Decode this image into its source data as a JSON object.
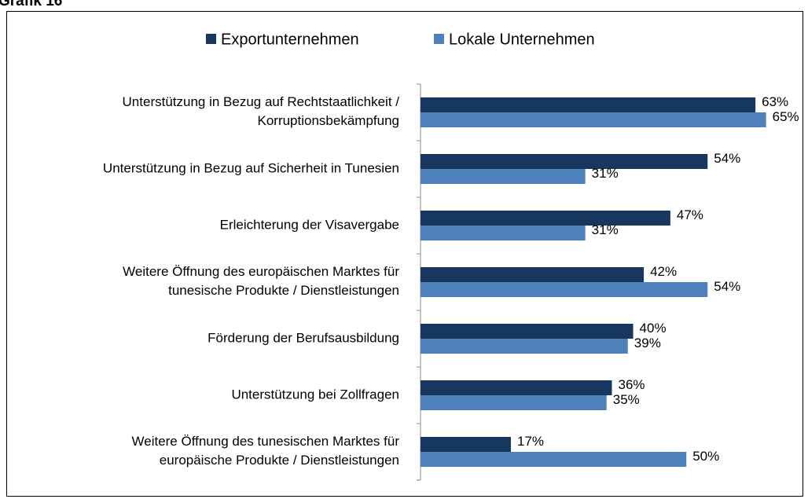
{
  "chart_data": {
    "type": "bar",
    "orientation": "horizontal",
    "title": "Grafik 16",
    "categories": [
      "Unterstützung in Bezug auf Rechtstaatlichkeit /\nKorruptionsbekämpfung",
      "Unterstützung in Bezug auf Sicherheit in Tunesien",
      "Erleichterung der Visavergabe",
      "Weitere Öffnung des europäischen Marktes für\ntunesische Produkte / Dienstleistungen",
      "Förderung der Berufsausbildung",
      "Unterstützung bei Zollfragen",
      "Weitere Öffnung des tunesischen Marktes für\neuropäische Produkte / Dienstleistungen"
    ],
    "series": [
      {
        "name": "Exportunternehmen",
        "color": "#17375e",
        "values": [
          63,
          54,
          47,
          42,
          40,
          36,
          17
        ],
        "value_labels": [
          "63%",
          "54%",
          "47%",
          "42%",
          "40%",
          "36%",
          "17%"
        ]
      },
      {
        "name": "Lokale Unternehmen",
        "color": "#4f81bd",
        "values": [
          65,
          31,
          31,
          54,
          39,
          35,
          50
        ],
        "value_labels": [
          "65%",
          "31%",
          "31%",
          "54%",
          "39%",
          "35%",
          "50%"
        ]
      }
    ],
    "xlim": [
      0,
      72
    ],
    "legend": "top"
  }
}
